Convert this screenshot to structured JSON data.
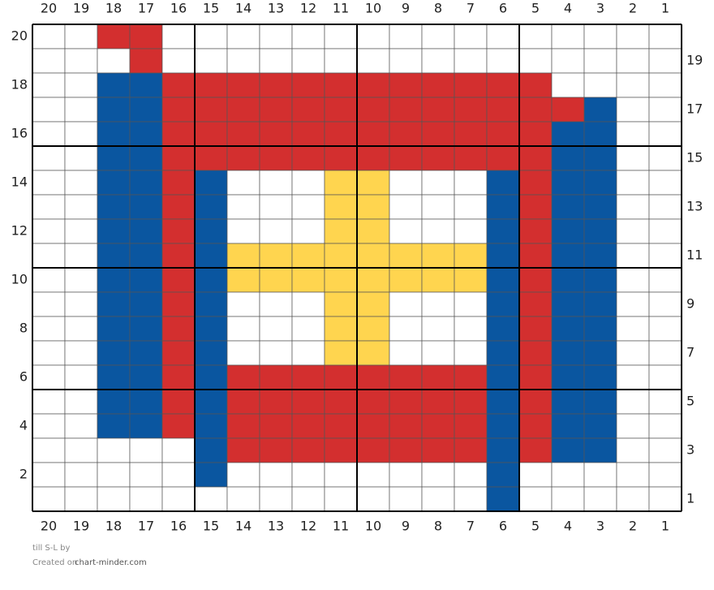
{
  "columns": [
    20,
    19,
    18,
    17,
    16,
    15,
    14,
    13,
    12,
    11,
    10,
    9,
    8,
    7,
    6,
    5,
    4,
    3,
    2,
    1
  ],
  "rows": [
    20,
    19,
    18,
    17,
    16,
    15,
    14,
    13,
    12,
    11,
    10,
    9,
    8,
    7,
    6,
    5,
    4,
    3,
    2,
    1
  ],
  "palette": {
    "W": "#ffffff",
    "R": "#d32f2f",
    "B": "#0a56a0",
    "Y": "#ffd54f"
  },
  "grid": [
    "WWRRWWWWWWWWWWWWWWWW",
    "WWWRWWWWWWWWWWWWWWWW",
    "WWBBRRRRRRRRRRRRWWWW",
    "WWBBRRRRRRRRRRRRRBWW",
    "WWBBRRRRRRRRRRRRBBWW",
    "WWBBRRRRRRRRRRRRBBWW",
    "WWBBRBWWWYYWWWBRBBWW",
    "WWBBRBWWWYYWWWBRBBWW",
    "WWBBRBWWWYYWWWBRBBWW",
    "WWBBRBYYYYYYYYBRBBWW",
    "WWBBRBYYYYYYYYBRBBWW",
    "WWBBRBWWWYYWWWBRBBWW",
    "WWBBRBWWWYYWWWBRBBWW",
    "WWBBRBWWWYYWWWBRBBWW",
    "WWBBRBRRRRRRRRBRBBWW",
    "WWBBRBRRRRRRRRBRBBWW",
    "WWBBRBRRRRRRRRBRBBWW",
    "WWWWWBRRRRRRRRBRBBWW",
    "WWWWWBWWWWWWWWBWWWWW",
    "WWWWWWWWWWWWWWBWWWWW"
  ],
  "footer": {
    "line1": "till S-L by",
    "line2_prefix": "Created on",
    "line2_site": "chart-minder.com"
  }
}
